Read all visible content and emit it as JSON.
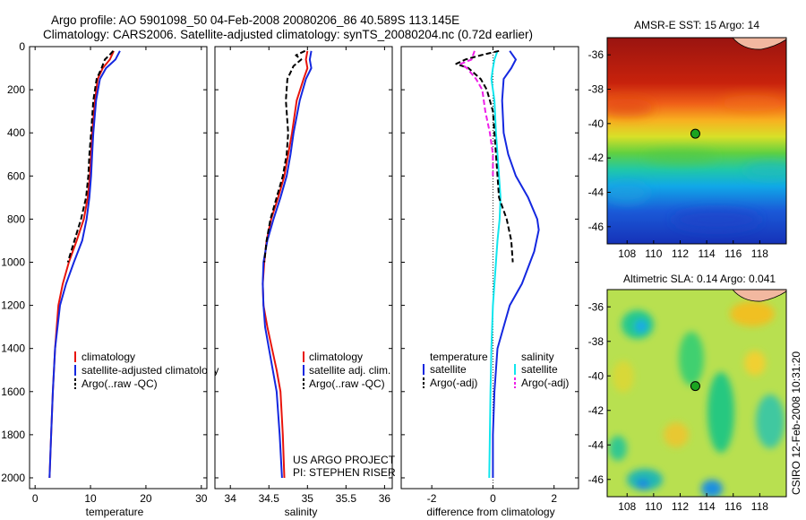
{
  "header": {
    "line1": "Argo profile: AO 5901098_50 04-Feb-2008 20080206_86 40.589S 113.145E",
    "line2": "Climatology: CARS2006. Satellite-adjusted climatology: synTS_20080204.nc (0.72d earlier)"
  },
  "side_text": "CSIRO 12-Feb-2008 10:31:20",
  "colors": {
    "climatology": "#e8140c",
    "satellite": "#1428e0",
    "argo": "#000000",
    "cyan": "#10e6ee",
    "magenta": "#ee1ee8",
    "marker": "#1aa520"
  },
  "chart_data": [
    {
      "type": "line",
      "xlabel": "temperature",
      "ylabel": "",
      "xlim": [
        -1,
        31
      ],
      "ylim": [
        0,
        2050
      ],
      "y_reversed": true,
      "x_ticks": [
        "0",
        "10",
        "20",
        "30"
      ],
      "y_ticks": [
        "0",
        "200",
        "400",
        "600",
        "800",
        "1000",
        "1200",
        "1400",
        "1600",
        "1800",
        "2000"
      ],
      "legend": {
        "position": "center-right",
        "entries": [
          "climatology",
          "satellite-adjusted climatology",
          "Argo(..raw -QC)"
        ]
      },
      "series": [
        {
          "name": "climatology",
          "color": "#e8140c",
          "style": "solid",
          "points": [
            [
              14.2,
              20
            ],
            [
              13.5,
              60
            ],
            [
              12.2,
              100
            ],
            [
              11.3,
              150
            ],
            [
              10.8,
              250
            ],
            [
              10.3,
              400
            ],
            [
              10.1,
              500
            ],
            [
              9.9,
              600
            ],
            [
              9.5,
              700
            ],
            [
              8.8,
              800
            ],
            [
              7.5,
              900
            ],
            [
              6.1,
              1000
            ],
            [
              5.0,
              1100
            ],
            [
              4.2,
              1200
            ],
            [
              3.6,
              1400
            ],
            [
              3.2,
              1600
            ],
            [
              2.9,
              1800
            ],
            [
              2.6,
              2000
            ]
          ]
        },
        {
          "name": "satellite-adjusted climatology",
          "color": "#1428e0",
          "style": "solid",
          "points": [
            [
              15.3,
              20
            ],
            [
              14.5,
              60
            ],
            [
              12.8,
              100
            ],
            [
              11.7,
              150
            ],
            [
              11.0,
              250
            ],
            [
              10.5,
              400
            ],
            [
              10.3,
              500
            ],
            [
              10.1,
              600
            ],
            [
              9.8,
              700
            ],
            [
              9.3,
              800
            ],
            [
              8.5,
              900
            ],
            [
              7.0,
              1000
            ],
            [
              5.6,
              1100
            ],
            [
              4.5,
              1200
            ],
            [
              3.6,
              1400
            ],
            [
              3.2,
              1600
            ],
            [
              2.9,
              1800
            ],
            [
              2.6,
              2000
            ]
          ]
        },
        {
          "name": "Argo(..raw -QC)",
          "color": "#000000",
          "style": "dashed",
          "points": [
            [
              14.1,
              20
            ],
            [
              13.4,
              40
            ],
            [
              12.6,
              60
            ],
            [
              12.0,
              100
            ],
            [
              11.1,
              150
            ],
            [
              10.5,
              250
            ],
            [
              10.1,
              400
            ],
            [
              9.8,
              500
            ],
            [
              9.6,
              600
            ],
            [
              9.2,
              700
            ],
            [
              8.3,
              800
            ],
            [
              7.1,
              900
            ],
            [
              5.9,
              1000
            ]
          ]
        }
      ]
    },
    {
      "type": "line",
      "xlabel": "salinity",
      "ylabel": "",
      "xlim": [
        33.8,
        36.1
      ],
      "ylim": [
        0,
        2050
      ],
      "y_reversed": true,
      "x_ticks": [
        "34",
        "34.5",
        "35",
        "35.5",
        "36"
      ],
      "legend": {
        "position": "center-right",
        "entries": [
          "climatology",
          "satellite adj. clim.",
          "Argo(..raw -QC)"
        ]
      },
      "annotation": [
        "US ARGO PROJECT",
        "PI: STEPHEN RISER"
      ],
      "series": [
        {
          "name": "climatology",
          "color": "#e8140c",
          "style": "solid",
          "points": [
            [
              35.0,
              20
            ],
            [
              34.98,
              60
            ],
            [
              35.0,
              100
            ],
            [
              34.95,
              150
            ],
            [
              34.86,
              250
            ],
            [
              34.8,
              400
            ],
            [
              34.75,
              500
            ],
            [
              34.7,
              600
            ],
            [
              34.62,
              700
            ],
            [
              34.53,
              800
            ],
            [
              34.47,
              900
            ],
            [
              34.44,
              1000
            ],
            [
              34.42,
              1100
            ],
            [
              34.43,
              1200
            ],
            [
              34.48,
              1300
            ],
            [
              34.54,
              1400
            ],
            [
              34.6,
              1500
            ],
            [
              34.65,
              1600
            ],
            [
              34.68,
              1800
            ],
            [
              34.7,
              2000
            ]
          ]
        },
        {
          "name": "satellite adj. clim.",
          "color": "#1428e0",
          "style": "solid",
          "points": [
            [
              35.05,
              20
            ],
            [
              35.03,
              60
            ],
            [
              35.05,
              100
            ],
            [
              34.98,
              150
            ],
            [
              34.9,
              250
            ],
            [
              34.82,
              400
            ],
            [
              34.78,
              500
            ],
            [
              34.73,
              600
            ],
            [
              34.65,
              700
            ],
            [
              34.56,
              800
            ],
            [
              34.48,
              900
            ],
            [
              34.43,
              1000
            ],
            [
              34.42,
              1100
            ],
            [
              34.43,
              1200
            ],
            [
              34.45,
              1300
            ],
            [
              34.5,
              1400
            ],
            [
              34.55,
              1500
            ],
            [
              34.6,
              1600
            ],
            [
              34.64,
              1800
            ],
            [
              34.67,
              2000
            ]
          ]
        },
        {
          "name": "Argo(..raw -QC)",
          "color": "#000000",
          "style": "dashed",
          "points": [
            [
              34.97,
              20
            ],
            [
              34.85,
              40
            ],
            [
              34.92,
              60
            ],
            [
              34.82,
              90
            ],
            [
              34.74,
              150
            ],
            [
              34.72,
              250
            ],
            [
              34.75,
              400
            ],
            [
              34.73,
              500
            ],
            [
              34.68,
              600
            ],
            [
              34.6,
              700
            ],
            [
              34.52,
              800
            ],
            [
              34.47,
              900
            ],
            [
              34.44,
              1000
            ]
          ]
        }
      ]
    },
    {
      "type": "line",
      "xlabel": "difference from climatology",
      "ylabel": "",
      "xlim": [
        -3.0,
        2.8
      ],
      "ylim": [
        0,
        2050
      ],
      "y_reversed": true,
      "x_ticks": [
        "-2",
        "0",
        "2"
      ],
      "legend": {
        "position": "lower-center",
        "headers": [
          "temperature",
          "salinity"
        ],
        "entries": [
          "satellite",
          "Argo(-adj)",
          "satellite",
          "Argo(-adj)"
        ]
      },
      "series": [
        {
          "name": "temperature satellite",
          "color": "#1428e0",
          "style": "solid",
          "points": [
            [
              0.55,
              20
            ],
            [
              0.75,
              60
            ],
            [
              0.6,
              100
            ],
            [
              0.35,
              150
            ],
            [
              0.3,
              250
            ],
            [
              0.35,
              400
            ],
            [
              0.5,
              500
            ],
            [
              0.75,
              600
            ],
            [
              1.15,
              700
            ],
            [
              1.45,
              800
            ],
            [
              1.5,
              850
            ],
            [
              1.35,
              950
            ],
            [
              0.95,
              1100
            ],
            [
              0.55,
              1200
            ],
            [
              0.15,
              1400
            ],
            [
              0.05,
              1600
            ],
            [
              0.0,
              1800
            ],
            [
              0.0,
              2000
            ]
          ]
        },
        {
          "name": "salinity satellite",
          "color": "#10e6ee",
          "style": "solid",
          "points": [
            [
              0.15,
              20
            ],
            [
              0.05,
              60
            ],
            [
              0.0,
              100
            ],
            [
              -0.05,
              150
            ],
            [
              0.05,
              250
            ],
            [
              0.1,
              400
            ],
            [
              0.15,
              500
            ],
            [
              0.2,
              600
            ],
            [
              0.25,
              700
            ],
            [
              0.22,
              800
            ],
            [
              0.15,
              900
            ],
            [
              0.1,
              1000
            ],
            [
              0.05,
              1100
            ],
            [
              0.0,
              1200
            ],
            [
              -0.05,
              1400
            ],
            [
              -0.08,
              1600
            ],
            [
              -0.1,
              1800
            ],
            [
              -0.12,
              2000
            ]
          ]
        },
        {
          "name": "temperature Argo(-adj)",
          "color": "#000000",
          "style": "dashed",
          "points": [
            [
              0.2,
              20
            ],
            [
              -0.4,
              40
            ],
            [
              -0.9,
              60
            ],
            [
              -1.2,
              80
            ],
            [
              -0.8,
              100
            ],
            [
              -0.4,
              150
            ],
            [
              -0.2,
              200
            ],
            [
              0.0,
              300
            ],
            [
              0.05,
              400
            ],
            [
              0.1,
              500
            ],
            [
              0.15,
              600
            ],
            [
              0.2,
              700
            ],
            [
              0.45,
              800
            ],
            [
              0.6,
              900
            ],
            [
              0.65,
              1000
            ]
          ]
        },
        {
          "name": "salinity Argo(-adj)",
          "color": "#ee1ee8",
          "style": "dashed",
          "points": [
            [
              -0.6,
              20
            ],
            [
              -0.7,
              60
            ],
            [
              -1.05,
              80
            ],
            [
              -0.85,
              100
            ],
            [
              -0.55,
              150
            ],
            [
              -0.35,
              200
            ],
            [
              -0.25,
              300
            ],
            [
              -0.1,
              400
            ],
            [
              0.0,
              500
            ],
            [
              0.0,
              600
            ]
          ]
        }
      ]
    },
    {
      "type": "heatmap",
      "title": "AMSR-E SST: 15 Argo: 14",
      "xlim": [
        106.5,
        120
      ],
      "ylim": [
        -47,
        -35
      ],
      "x_ticks": [
        "108",
        "110",
        "112",
        "114",
        "116",
        "118"
      ],
      "y_ticks": [
        "-36",
        "-38",
        "-40",
        "-42",
        "-44",
        "-46"
      ],
      "marker": {
        "lon": 113.145,
        "lat": -40.589
      }
    },
    {
      "type": "heatmap",
      "title": "Altimetric SLA: 0.14 Argo: 0.041",
      "xlim": [
        106.5,
        120
      ],
      "ylim": [
        -47,
        -35
      ],
      "x_ticks": [
        "108",
        "110",
        "112",
        "114",
        "116",
        "118"
      ],
      "y_ticks": [
        "-36",
        "-38",
        "-40",
        "-42",
        "-44",
        "-46"
      ],
      "marker": {
        "lon": 113.145,
        "lat": -40.589
      }
    }
  ]
}
